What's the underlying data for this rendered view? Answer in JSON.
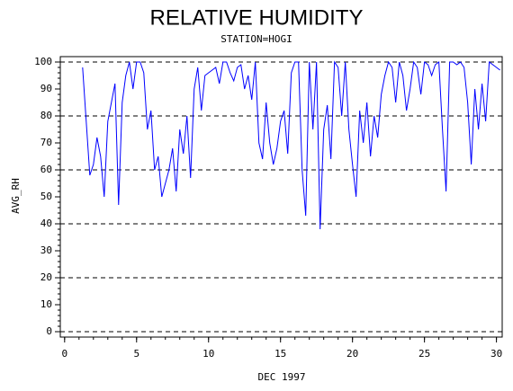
{
  "chart_data": {
    "type": "line",
    "title": "RELATIVE HUMIDITY",
    "subtitle": "STATION=HOGI",
    "x_label": "DEC 1997",
    "y_label": "AVG_RH",
    "color": "#0000ff",
    "xlim": [
      -0.3,
      30.4
    ],
    "xticks": [
      0,
      5,
      10,
      15,
      20,
      25,
      30
    ],
    "x_minor_step": 1,
    "ylim": [
      -2,
      102
    ],
    "yticks": [
      0,
      10,
      20,
      30,
      40,
      50,
      60,
      70,
      80,
      90,
      100
    ],
    "y_minor_step": 2,
    "grid_lines": [
      0,
      20,
      40,
      60,
      80,
      100
    ],
    "x": [
      1.25,
      1.5,
      1.75,
      2,
      2.25,
      2.5,
      2.75,
      3,
      3.25,
      3.5,
      3.75,
      4,
      4.25,
      4.5,
      4.75,
      5,
      5.25,
      5.5,
      5.75,
      6,
      6.25,
      6.5,
      6.75,
      7,
      7.25,
      7.5,
      7.75,
      8,
      8.25,
      8.5,
      8.75,
      9,
      9.25,
      9.5,
      9.75,
      10,
      10.25,
      10.5,
      10.75,
      11,
      11.25,
      11.5,
      11.75,
      12,
      12.25,
      12.5,
      12.75,
      13,
      13.25,
      13.5,
      13.75,
      14,
      14.25,
      14.5,
      14.75,
      15,
      15.25,
      15.5,
      15.75,
      16,
      16.25,
      16.5,
      16.75,
      17,
      17.25,
      17.5,
      17.75,
      18,
      18.25,
      18.5,
      18.75,
      19,
      19.25,
      19.5,
      19.75,
      20,
      20.25,
      20.5,
      20.75,
      21,
      21.25,
      21.5,
      21.75,
      22,
      22.25,
      22.5,
      22.75,
      23,
      23.25,
      23.5,
      23.75,
      24,
      24.25,
      24.5,
      24.75,
      25,
      25.25,
      25.5,
      25.75,
      26,
      26.25,
      26.5,
      26.75,
      27,
      27.25,
      27.5,
      27.75,
      28,
      28.25,
      28.5,
      28.75,
      29,
      29.25,
      29.5,
      29.75,
      30,
      30.25
    ],
    "values": [
      98,
      78,
      58,
      62,
      72,
      65,
      50,
      78,
      85,
      92,
      47,
      85,
      95,
      100,
      90,
      100,
      100,
      96,
      75,
      82,
      60,
      65,
      50,
      55,
      60,
      68,
      52,
      75,
      66,
      80,
      57,
      90,
      98,
      82,
      95,
      96,
      97,
      98,
      92,
      100,
      100,
      96,
      93,
      98,
      99,
      90,
      95,
      86,
      100,
      70,
      64,
      85,
      70,
      62,
      68,
      78,
      82,
      66,
      96,
      100,
      100,
      60,
      43,
      100,
      75,
      100,
      38,
      75,
      84,
      64,
      100,
      98,
      80,
      100,
      75,
      62,
      50,
      82,
      70,
      85,
      65,
      80,
      72,
      88,
      95,
      100,
      98,
      85,
      100,
      95,
      82,
      90,
      100,
      98,
      88,
      100,
      99,
      95,
      99,
      100,
      75,
      52,
      100,
      100,
      99,
      100,
      98,
      85,
      62,
      90,
      75,
      92,
      78,
      100,
      99,
      98,
      97
    ]
  }
}
